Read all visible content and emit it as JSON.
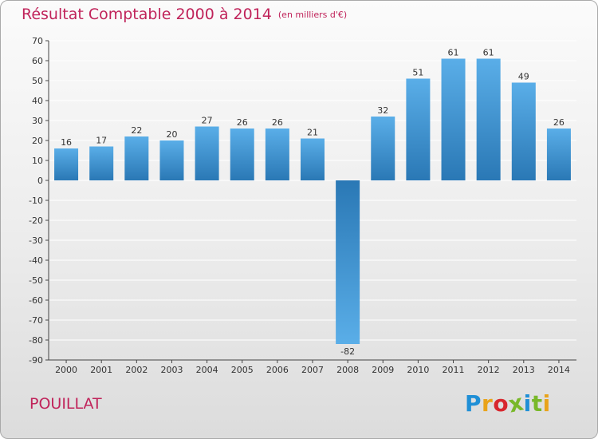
{
  "title": "Résultat Comptable 2000 à 2014",
  "subtitle": "(en milliers d'€)",
  "commune": "POUILLAT",
  "logo": {
    "text": "Proxiti",
    "colors": [
      "#1f8fd6",
      "#e9a31a",
      "#d8262d",
      "#79b829",
      "#1f8fd6",
      "#79b829",
      "#e9a31a"
    ]
  },
  "colors": {
    "accent": "#c0235a",
    "bar_top": "#5aaee8",
    "bar_bottom": "#2a78b5",
    "axis": "#444444",
    "grid": "#ffffff"
  },
  "chart_data": {
    "type": "bar",
    "categories": [
      "2000",
      "2001",
      "2002",
      "2003",
      "2004",
      "2005",
      "2006",
      "2007",
      "2008",
      "2009",
      "2010",
      "2011",
      "2012",
      "2013",
      "2014"
    ],
    "values": [
      16,
      17,
      22,
      20,
      27,
      26,
      26,
      21,
      -82,
      32,
      51,
      61,
      61,
      49,
      26
    ],
    "title": "Résultat Comptable 2000 à 2014",
    "xlabel": "",
    "ylabel": "",
    "ylim": [
      -90,
      70
    ],
    "yticks": [
      70,
      60,
      50,
      40,
      30,
      20,
      10,
      0,
      -10,
      -20,
      -30,
      -40,
      -50,
      -60,
      -70,
      -80,
      -90
    ],
    "grid": true,
    "data_labels": true
  }
}
